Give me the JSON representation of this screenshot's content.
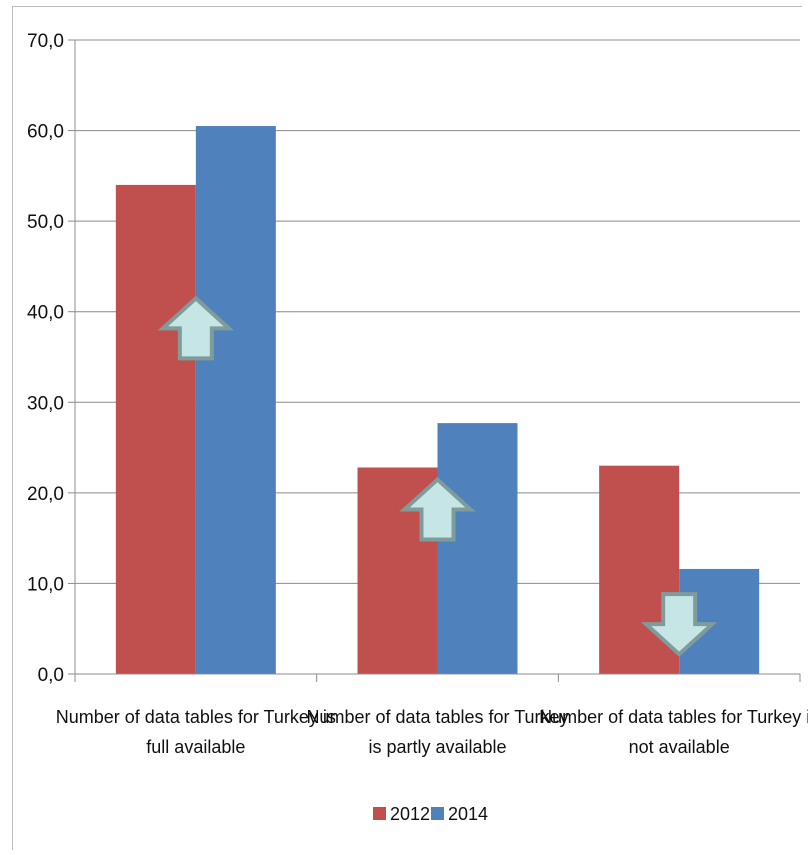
{
  "chart_data": {
    "type": "bar",
    "categories": [
      [
        "Number of data tables for Turkey is",
        "full available"
      ],
      [
        "Number of data tables  for Turkey",
        "is partly available"
      ],
      [
        "Number of data tables for Turkey is",
        "not available"
      ]
    ],
    "series": [
      {
        "name": "2012",
        "color": "#c0504d",
        "values": [
          54.0,
          22.8,
          23.0
        ]
      },
      {
        "name": "2014",
        "color": "#4f81bd",
        "values": [
          60.5,
          27.7,
          11.6
        ]
      }
    ],
    "yticks": [
      "0,0",
      "10,0",
      "20,0",
      "30,0",
      "40,0",
      "50,0",
      "60,0",
      "70,0"
    ],
    "ylim": [
      0,
      70
    ],
    "grid": true,
    "legend_position": "bottom",
    "annotations": [
      {
        "category_index": 0,
        "direction": "up",
        "at_value": 36.5
      },
      {
        "category_index": 1,
        "direction": "up",
        "at_value": 16.5
      },
      {
        "category_index": 2,
        "direction": "down",
        "at_value": 5.5
      }
    ],
    "arrow_color": "#c6e6e6"
  }
}
